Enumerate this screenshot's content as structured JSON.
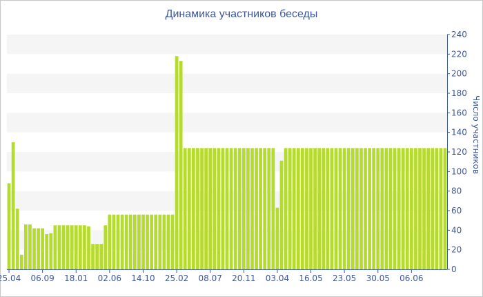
{
  "chart_data": {
    "type": "bar",
    "title": "Динамика участников беседы",
    "ylabel": "Число участников",
    "xlabel": "",
    "ylim": [
      0,
      240
    ],
    "yticks": [
      0,
      20,
      40,
      60,
      80,
      100,
      120,
      140,
      160,
      180,
      200,
      220,
      240
    ],
    "grid": "alternating horizontal bands",
    "y_axis_side": "right",
    "bar_color": "#b5dc2d",
    "band_color": "#f5f5f5",
    "text_color": "#3e5796",
    "x_tick_labels": [
      "25.04",
      "06.09",
      "18.01",
      "02.06",
      "14.10",
      "25.02",
      "08.07",
      "20.11",
      "03.04",
      "16.05",
      "23.05",
      "30.05",
      "06.06"
    ],
    "x_tick_bar_index": [
      0,
      8,
      16,
      24,
      32,
      40,
      48,
      56,
      64,
      72,
      80,
      88,
      96
    ],
    "values": [
      88,
      130,
      62,
      15,
      46,
      46,
      42,
      42,
      42,
      36,
      37,
      45,
      45,
      45,
      45,
      45,
      45,
      45,
      45,
      44,
      26,
      26,
      26,
      45,
      56,
      56,
      56,
      56,
      56,
      56,
      56,
      56,
      56,
      56,
      56,
      56,
      56,
      56,
      56,
      56,
      218,
      213,
      124,
      124,
      124,
      124,
      124,
      124,
      124,
      124,
      124,
      124,
      124,
      124,
      124,
      124,
      124,
      124,
      124,
      124,
      124,
      124,
      124,
      124,
      63,
      111,
      124,
      124,
      124,
      124,
      124,
      124,
      124,
      124,
      124,
      124,
      124,
      124,
      124,
      124,
      124,
      124,
      124,
      124,
      124,
      124,
      124,
      124,
      124,
      124,
      124,
      124,
      124,
      124,
      124,
      124,
      124,
      124,
      124,
      124,
      124,
      124,
      124,
      124,
      124
    ]
  }
}
